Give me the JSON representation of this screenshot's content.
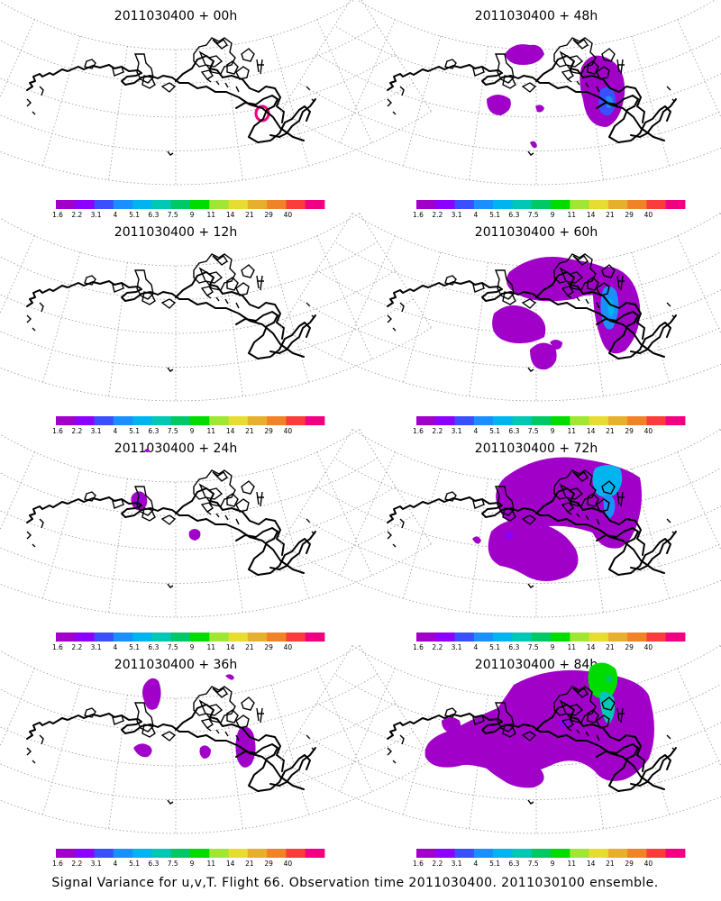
{
  "figure": {
    "footer": "Signal Variance for u,v,T. Flight 66. Observation time 2011030400. 2011030100 ensemble.",
    "colorbar": {
      "labels": [
        "1.6",
        "2.2",
        "3.1",
        "4",
        "5.1",
        "6.3",
        "7.5",
        "9",
        "11",
        "14",
        "21",
        "29",
        "40"
      ],
      "colors": [
        "#a000c8",
        "#8c00ff",
        "#3a50ff",
        "#1a90ff",
        "#00b4f0",
        "#00c8b4",
        "#00c864",
        "#00dc00",
        "#a0e632",
        "#e6dc32",
        "#e6af2d",
        "#f08228",
        "#fa3c3c",
        "#f00082"
      ]
    },
    "panels": [
      {
        "title": "2011030400 + 00h",
        "lead_hours": 0
      },
      {
        "title": "2011030400 + 48h",
        "lead_hours": 48
      },
      {
        "title": "2011030400 + 12h",
        "lead_hours": 12
      },
      {
        "title": "2011030400 + 60h",
        "lead_hours": 60
      },
      {
        "title": "2011030400 + 24h",
        "lead_hours": 24
      },
      {
        "title": "2011030400 + 72h",
        "lead_hours": 72
      },
      {
        "title": "2011030400 + 36h",
        "lead_hours": 36
      },
      {
        "title": "2011030400 + 84h",
        "lead_hours": 84
      }
    ]
  }
}
